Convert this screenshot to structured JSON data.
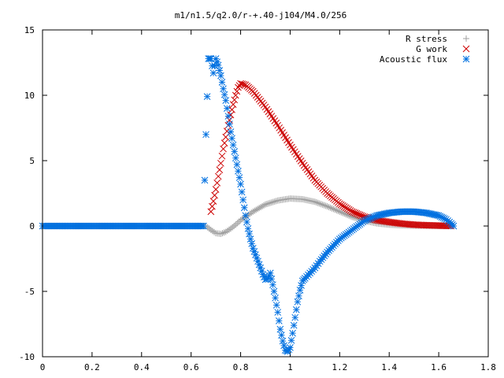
{
  "chart_data": {
    "type": "scatter",
    "title": "m1/n1.5/q2.0/r-+.40-j104/M4.0/256",
    "xlabel": "",
    "ylabel": "",
    "xlim": [
      0,
      1.8
    ],
    "ylim": [
      -10,
      15
    ],
    "xticks": [
      "0",
      "0.2",
      "0.4",
      "0.6",
      "0.8",
      "1",
      "1.2",
      "1.4",
      "1.6",
      "1.8"
    ],
    "yticks": [
      "-10",
      "-5",
      "0",
      "5",
      "10",
      "15"
    ],
    "legend_position": "top-right",
    "series": [
      {
        "name": "R stress",
        "marker": "plus",
        "color": "#a0a0a0",
        "x": [
          0.0,
          0.1,
          0.2,
          0.3,
          0.4,
          0.5,
          0.6,
          0.66,
          0.68,
          0.7,
          0.72,
          0.74,
          0.76,
          0.78,
          0.8,
          0.85,
          0.9,
          0.95,
          1.0,
          1.05,
          1.1,
          1.15,
          1.2,
          1.25,
          1.3,
          1.35,
          1.4,
          1.45,
          1.5,
          1.55,
          1.6,
          1.66
        ],
        "y": [
          0,
          0,
          0,
          0,
          0,
          0,
          0,
          0,
          -0.3,
          -0.55,
          -0.6,
          -0.45,
          -0.2,
          0.1,
          0.45,
          1.1,
          1.65,
          1.95,
          2.1,
          2.05,
          1.85,
          1.5,
          1.1,
          0.7,
          0.4,
          0.2,
          0.1,
          0.05,
          0.02,
          0.01,
          0.0,
          0.0
        ]
      },
      {
        "name": "G work",
        "marker": "cross",
        "color": "#cc0000",
        "x": [
          0.68,
          0.69,
          0.7,
          0.71,
          0.72,
          0.73,
          0.74,
          0.75,
          0.76,
          0.77,
          0.78,
          0.79,
          0.8,
          0.82,
          0.85,
          0.9,
          0.95,
          1.0,
          1.05,
          1.1,
          1.15,
          1.2,
          1.25,
          1.3,
          1.35,
          1.4,
          1.45,
          1.5,
          1.55,
          1.6,
          1.65
        ],
        "y": [
          1.1,
          1.9,
          2.8,
          3.8,
          4.8,
          5.9,
          6.8,
          7.7,
          8.5,
          9.3,
          10.0,
          10.6,
          10.9,
          10.8,
          10.3,
          9.1,
          7.7,
          6.2,
          4.8,
          3.5,
          2.5,
          1.7,
          1.1,
          0.7,
          0.45,
          0.3,
          0.18,
          0.1,
          0.06,
          0.03,
          0.01
        ]
      },
      {
        "name": "Acoustic flux",
        "marker": "star",
        "color": "#0070e0",
        "x": [
          0.0,
          0.05,
          0.1,
          0.15,
          0.2,
          0.25,
          0.3,
          0.35,
          0.4,
          0.45,
          0.5,
          0.55,
          0.6,
          0.65,
          0.66,
          0.67,
          0.68,
          0.69,
          0.7,
          0.71,
          0.72,
          0.73,
          0.74,
          0.75,
          0.76,
          0.77,
          0.78,
          0.79,
          0.8,
          0.81,
          0.82,
          0.83,
          0.84,
          0.85,
          0.86,
          0.87,
          0.88,
          0.89,
          0.9,
          0.91,
          0.92,
          0.93,
          0.94,
          0.95,
          0.96,
          0.97,
          0.98,
          0.99,
          1.0,
          1.01,
          1.02,
          1.03,
          1.04,
          1.05,
          1.06,
          1.08,
          1.1,
          1.12,
          1.15,
          1.2,
          1.25,
          1.3,
          1.35,
          1.4,
          1.45,
          1.5,
          1.55,
          1.6,
          1.63,
          1.65,
          1.66
        ],
        "y": [
          0,
          0,
          0,
          0,
          0,
          0,
          0,
          0,
          0,
          0,
          0,
          0,
          0,
          0,
          7.0,
          12.8,
          12.8,
          11.7,
          12.8,
          12.3,
          11.5,
          10.5,
          9.6,
          8.4,
          7.2,
          6.2,
          5.2,
          4.2,
          3.2,
          2.0,
          0.8,
          -0.2,
          -1.0,
          -1.7,
          -2.2,
          -2.7,
          -3.2,
          -3.7,
          -4.1,
          -4.0,
          -3.6,
          -4.5,
          -5.5,
          -6.6,
          -7.9,
          -8.8,
          -9.5,
          -9.6,
          -9.3,
          -8.2,
          -7.0,
          -5.8,
          -4.9,
          -4.2,
          -4.0,
          -3.6,
          -3.2,
          -2.7,
          -2.0,
          -1.0,
          -0.3,
          0.4,
          0.8,
          1.0,
          1.1,
          1.1,
          1.0,
          0.8,
          0.5,
          0.2,
          0.0
        ]
      }
    ]
  }
}
